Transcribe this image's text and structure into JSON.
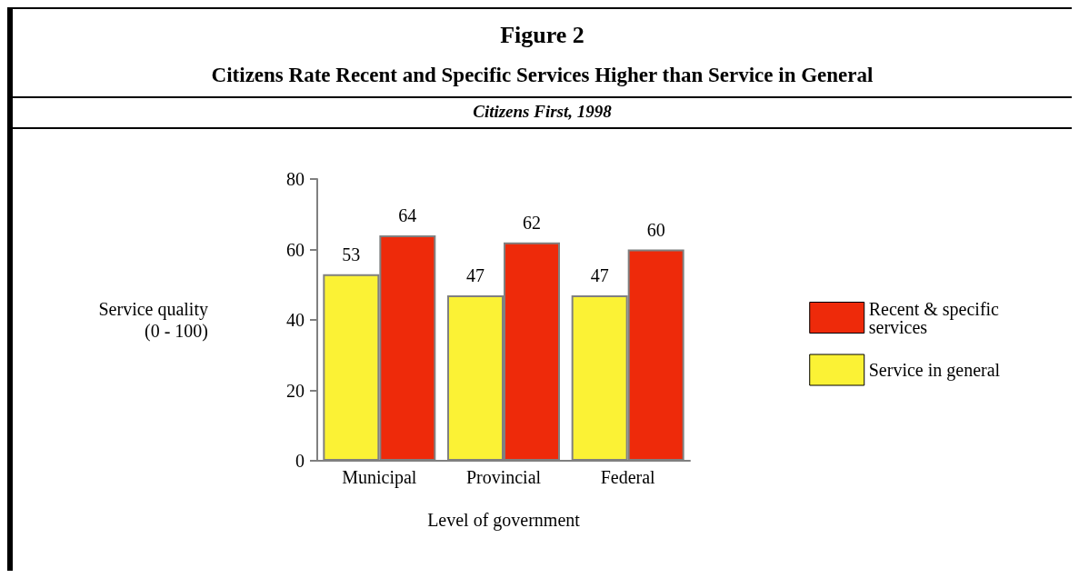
{
  "chart_data": {
    "type": "bar",
    "title": "Figure 2",
    "subtitle": "Citizens Rate Recent and Specific Services Higher than Service in General",
    "annotations": [
      "Citizens First, 1998"
    ],
    "xlabel": "Level of government",
    "ylabel": "Service quality\n(0 - 100)",
    "categories": [
      "Municipal",
      "Provincial",
      "Federal"
    ],
    "series": [
      {
        "name": "Service in general",
        "color": "#fbf235",
        "values": [
          53,
          47,
          47
        ]
      },
      {
        "name": "Recent & specific services",
        "color": "#ee2a0a",
        "values": [
          64,
          62,
          60
        ]
      }
    ],
    "ylim": [
      0,
      80
    ],
    "yticks": [
      0,
      20,
      40,
      60,
      80
    ],
    "grid": false,
    "legend": "right",
    "data_labels": true
  }
}
